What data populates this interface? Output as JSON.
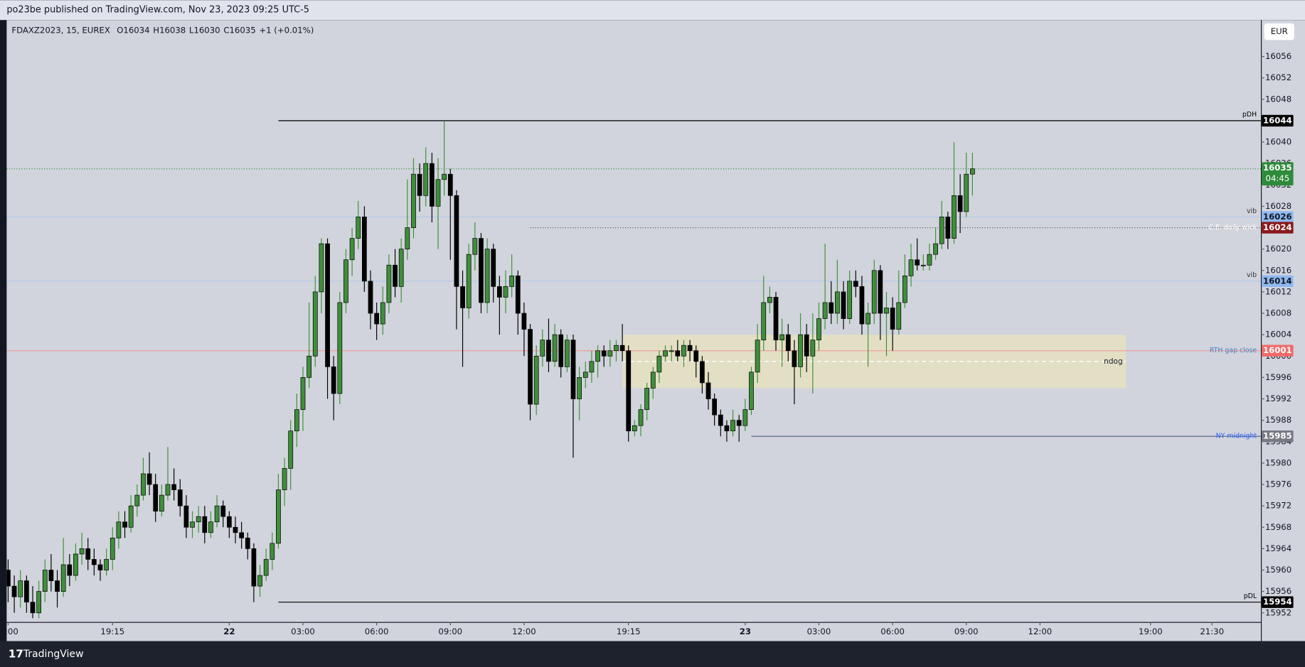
{
  "chart_data": {
    "type": "candlestick",
    "header": "po23be published on TradingView.com, Nov 23, 2023 09:25 UTC-5",
    "symbol": "FDAXZ2023, 15, EUREX",
    "ohlc_letters": [
      "O",
      "H",
      "L",
      "C"
    ],
    "change": "+1 (+0.01%)",
    "currency": "EUR",
    "brand": "TradingView",
    "up_color": "#3f8f3a",
    "down_color": "#000000",
    "ylim": [
      15950.3,
      16062.8
    ],
    "yticks": [
      15952,
      15956,
      15960,
      15964,
      15968,
      15972,
      15976,
      15980,
      15984,
      15988,
      15992,
      15996,
      16000,
      16004,
      16008,
      16012,
      16016,
      16020,
      16024,
      16028,
      16032,
      16036,
      16040,
      16044,
      16048,
      16052,
      16056
    ],
    "xlim": [
      -0.24,
      203.96
    ],
    "xticks": [
      {
        "value": 0,
        "label": ":00"
      },
      {
        "value": 17,
        "label": "19:15"
      },
      {
        "value": 36,
        "label": "22"
      },
      {
        "value": 48,
        "label": "03:00"
      },
      {
        "value": 60,
        "label": "06:00"
      },
      {
        "value": 72,
        "label": "09:00"
      },
      {
        "value": 84,
        "label": "12:00"
      },
      {
        "value": 101,
        "label": "19:15"
      },
      {
        "value": 120,
        "label": "23"
      },
      {
        "value": 132,
        "label": "03:00"
      },
      {
        "value": 144,
        "label": "06:00"
      },
      {
        "value": 156,
        "label": "09:00"
      },
      {
        "value": 168,
        "label": "12:00"
      },
      {
        "value": 186,
        "label": "19:00"
      },
      {
        "value": 196,
        "label": "21:30"
      }
    ],
    "candles": [
      [
        15960,
        15962,
        15954,
        15957
      ],
      [
        15957,
        15959,
        15952,
        15955
      ],
      [
        15955,
        15960,
        15953,
        15958
      ],
      [
        15958,
        15959,
        15952,
        15954
      ],
      [
        15954,
        15957,
        15951,
        15952
      ],
      [
        15952,
        15958,
        15951,
        15956
      ],
      [
        15956,
        15962,
        15954,
        15960
      ],
      [
        15960,
        15963,
        15956,
        15958
      ],
      [
        15958,
        15960,
        15953,
        15956
      ],
      [
        15956,
        15966,
        15955,
        15961
      ],
      [
        15961,
        15963,
        15957,
        15959
      ],
      [
        15959,
        15965,
        15958,
        15963
      ],
      [
        15963,
        15967,
        15961,
        15964
      ],
      [
        15964,
        15966,
        15960,
        15962
      ],
      [
        15962,
        15964,
        15959,
        15961
      ],
      [
        15961,
        15962,
        15958,
        15960
      ],
      [
        15960,
        15964,
        15959,
        15962
      ],
      [
        15962,
        15968,
        15960,
        15966
      ],
      [
        15966,
        15971,
        15964,
        15969
      ],
      [
        15969,
        15971,
        15966,
        15968
      ],
      [
        15968,
        15974,
        15967,
        15972
      ],
      [
        15972,
        15976,
        15970,
        15974
      ],
      [
        15974,
        15981,
        15973,
        15978
      ],
      [
        15978,
        15982,
        15974,
        15976
      ],
      [
        15976,
        15978,
        15969,
        15971
      ],
      [
        15971,
        15976,
        15970,
        15974
      ],
      [
        15974,
        15983,
        15973,
        15976
      ],
      [
        15976,
        15979,
        15973,
        15975
      ],
      [
        15975,
        15977,
        15970,
        15972
      ],
      [
        15972,
        15974,
        15966,
        15968
      ],
      [
        15968,
        15971,
        15966,
        15969
      ],
      [
        15969,
        15972,
        15967,
        15970
      ],
      [
        15970,
        15972,
        15965,
        15967
      ],
      [
        15967,
        15971,
        15966,
        15969
      ],
      [
        15969,
        15974,
        15968,
        15972
      ],
      [
        15972,
        15973,
        15968,
        15970
      ],
      [
        15970,
        15971,
        15966,
        15968
      ],
      [
        15968,
        15970,
        15965,
        15967
      ],
      [
        15967,
        15969,
        15964,
        15966
      ],
      [
        15966,
        15967,
        15962,
        15964
      ],
      [
        15964,
        15965,
        15954,
        15957
      ],
      [
        15957,
        15961,
        15955,
        15959
      ],
      [
        15959,
        15964,
        15958,
        15962
      ],
      [
        15962,
        15967,
        15960,
        15965
      ],
      [
        15965,
        15978,
        15964,
        15975
      ],
      [
        15975,
        15981,
        15972,
        15979
      ],
      [
        15979,
        15988,
        15975,
        15986
      ],
      [
        15986,
        15993,
        15983,
        15990
      ],
      [
        15990,
        15998,
        15986,
        15996
      ],
      [
        15996,
        16010,
        15994,
        16000
      ],
      [
        16000,
        16015,
        15998,
        16012
      ],
      [
        16012,
        16022,
        16008,
        16021
      ],
      [
        16021,
        16022,
        15992,
        15998
      ],
      [
        15998,
        16000,
        15988,
        15993
      ],
      [
        15993,
        16012,
        15991,
        16010
      ],
      [
        16010,
        16020,
        16008,
        16018
      ],
      [
        16018,
        16024,
        16015,
        16022
      ],
      [
        16022,
        16029,
        16020,
        16026
      ],
      [
        16026,
        16028,
        16012,
        16014
      ],
      [
        16014,
        16016,
        16005,
        16008
      ],
      [
        16008,
        16010,
        16003,
        16006
      ],
      [
        16006,
        16013,
        16004,
        16010
      ],
      [
        16010,
        16019,
        16008,
        16017
      ],
      [
        16017,
        16020,
        16011,
        16013
      ],
      [
        16013,
        16022,
        16010,
        16020
      ],
      [
        16020,
        16033,
        16018,
        16024
      ],
      [
        16024,
        16037,
        16022,
        16034
      ],
      [
        16034,
        16036,
        16027,
        16030
      ],
      [
        16030,
        16039,
        16028,
        16036
      ],
      [
        16036,
        16038,
        16025,
        16028
      ],
      [
        16028,
        16037,
        16020,
        16033
      ],
      [
        16033,
        16044,
        16030,
        16034
      ],
      [
        16034,
        16035,
        16018,
        16030
      ],
      [
        16030,
        16031,
        16005,
        16013
      ],
      [
        16013,
        16016,
        15998,
        16009
      ],
      [
        16009,
        16021,
        16007,
        16019
      ],
      [
        16019,
        16025,
        16016,
        16022
      ],
      [
        16022,
        16023,
        16008,
        16010
      ],
      [
        16010,
        16022,
        16008,
        16020
      ],
      [
        16020,
        16021,
        16010,
        16013
      ],
      [
        16013,
        16015,
        16004,
        16011
      ],
      [
        16011,
        16016,
        16008,
        16013
      ],
      [
        16013,
        16019,
        16011,
        16015
      ],
      [
        16015,
        16016,
        16004,
        16008
      ],
      [
        16008,
        16010,
        16000,
        16005
      ],
      [
        16005,
        16006,
        15988,
        15991
      ],
      [
        15991,
        16002,
        15989,
        16000
      ],
      [
        16000,
        16005,
        15998,
        16003
      ],
      [
        16003,
        16007,
        15997,
        15999
      ],
      [
        15999,
        16006,
        15998,
        16004
      ],
      [
        16004,
        16005,
        15996,
        15998
      ],
      [
        15998,
        16004,
        15997,
        16003
      ],
      [
        16003,
        16004,
        15981,
        15992
      ],
      [
        15992,
        15998,
        15988,
        15996
      ],
      [
        15996,
        15999,
        15994,
        15997
      ],
      [
        15997,
        16001,
        15995,
        15999
      ],
      [
        15999,
        16002,
        15996,
        16001
      ],
      [
        16001,
        16002,
        15998,
        16000
      ],
      [
        16000,
        16003,
        15998,
        16001
      ],
      [
        16001,
        16003,
        15999,
        16002
      ],
      [
        16002,
        16006,
        15999,
        16001
      ],
      [
        16001,
        16002,
        15984,
        15986
      ],
      [
        15986,
        15988,
        15985,
        15987
      ],
      [
        15987,
        15991,
        15985,
        15990
      ],
      [
        15990,
        15995,
        15988,
        15994
      ],
      [
        15994,
        15998,
        15992,
        15997
      ],
      [
        15997,
        16001,
        15995,
        16000
      ],
      [
        16000,
        16002,
        15999,
        16001
      ],
      [
        16001,
        16002,
        15999,
        16001
      ],
      [
        16001,
        16003,
        15999,
        16000
      ],
      [
        16000,
        16003,
        15998,
        16002
      ],
      [
        16002,
        16003,
        15999,
        16001
      ],
      [
        16001,
        16002,
        15996,
        15999
      ],
      [
        15999,
        16000,
        15993,
        15995
      ],
      [
        15995,
        15997,
        15990,
        15992
      ],
      [
        15992,
        15993,
        15987,
        15989
      ],
      [
        15989,
        15990,
        15985,
        15987
      ],
      [
        15987,
        15988,
        15984,
        15986
      ],
      [
        15986,
        15990,
        15985,
        15988
      ],
      [
        15988,
        15989,
        15984,
        15987
      ],
      [
        15987,
        15992,
        15986,
        15990
      ],
      [
        15990,
        15998,
        15989,
        15997
      ],
      [
        15997,
        16006,
        15995,
        16003
      ],
      [
        16003,
        16015,
        16001,
        16010
      ],
      [
        16010,
        16013,
        16008,
        16011
      ],
      [
        16011,
        16012,
        16001,
        16003
      ],
      [
        16003,
        16007,
        15998,
        16004
      ],
      [
        16004,
        16006,
        15999,
        16001
      ],
      [
        16001,
        16003,
        15991,
        15998
      ],
      [
        15998,
        16008,
        15996,
        16004
      ],
      [
        16004,
        16006,
        15997,
        16000
      ],
      [
        16000,
        16008,
        15993,
        16003
      ],
      [
        16003,
        16010,
        16001,
        16007
      ],
      [
        16007,
        16021,
        16005,
        16010
      ],
      [
        16010,
        16014,
        16006,
        16008
      ],
      [
        16008,
        16018,
        16006,
        16012
      ],
      [
        16012,
        16014,
        16005,
        16007
      ],
      [
        16007,
        16016,
        16006,
        16014
      ],
      [
        16014,
        16016,
        16011,
        16013
      ],
      [
        16013,
        16015,
        16004,
        16006
      ],
      [
        16006,
        16010,
        15998,
        16008
      ],
      [
        16008,
        16018,
        16006,
        16016
      ],
      [
        16016,
        16017,
        16003,
        16008
      ],
      [
        16008,
        16012,
        16000,
        16009
      ],
      [
        16009,
        16011,
        16001,
        16005
      ],
      [
        16005,
        16016,
        16004,
        16010
      ],
      [
        16010,
        16019,
        16009,
        16015
      ],
      [
        16015,
        16021,
        16013,
        16018
      ],
      [
        16018,
        16022,
        16016,
        16017
      ],
      [
        16017,
        16019,
        16016,
        16017
      ],
      [
        16017,
        16021,
        16016,
        16019
      ],
      [
        16019,
        16024,
        16018,
        16021
      ],
      [
        16021,
        16029,
        16020,
        16026
      ],
      [
        16026,
        16027,
        16020,
        16022
      ],
      [
        16022,
        16040,
        16021,
        16030
      ],
      [
        16030,
        16034,
        16023,
        16027
      ],
      [
        16027,
        16038,
        16026,
        16034
      ],
      [
        16034,
        16038,
        16030,
        16035
      ]
    ],
    "zone": {
      "label": "ndog",
      "low": 15994,
      "high": 16004,
      "mid": 15999,
      "start": 100,
      "end": 182,
      "color": "#e6e1c0"
    },
    "levels": [
      {
        "name": "pDH",
        "value": 16044,
        "start": 44,
        "line_color": "#000000",
        "label_color": "#000000",
        "tag_color": "#000000",
        "tag_text": "#ffffff",
        "style": "solid"
      },
      {
        "name": "vib",
        "value": 16026,
        "line_color": "#b3c8ea",
        "label_color": "#333333",
        "tag_color": "#8fb8f0",
        "tag_text": "#131722",
        "style": "solid"
      },
      {
        "name": "C.E. daily wick",
        "value": 16024,
        "start": 85,
        "line_color": "#555555",
        "label_color": "#ffffff",
        "tag_color": "#8b1a1a",
        "tag_text": "#ffffff",
        "style": "dotted"
      },
      {
        "name": "vib",
        "value": 16014,
        "line_color": "#b3c8ea",
        "label_color": "#333333",
        "tag_color": "#8fb8f0",
        "tag_text": "#131722",
        "style": "solid"
      },
      {
        "name": "RTH gap close",
        "value": 16001,
        "line_color": "#eea0a0",
        "label_color": "#4a7fc1",
        "tag_color": "#f06a6a",
        "tag_text": "#ffffff",
        "style": "solid"
      },
      {
        "name": "NY midnight",
        "value": 15985,
        "start": 121,
        "line_color": "#5c6a8a",
        "label_color": "#2962ff",
        "tag_color": "#787b86",
        "tag_text": "#ffffff",
        "style": "solid"
      },
      {
        "name": "pDL",
        "value": 15954,
        "start": 44,
        "line_color": "#000000",
        "label_color": "#000000",
        "tag_color": "#000000",
        "tag_text": "#ffffff",
        "style": "solid"
      }
    ],
    "last_price": {
      "value": 16035,
      "countdown": "04:45",
      "color": "#2e8b3a"
    }
  }
}
